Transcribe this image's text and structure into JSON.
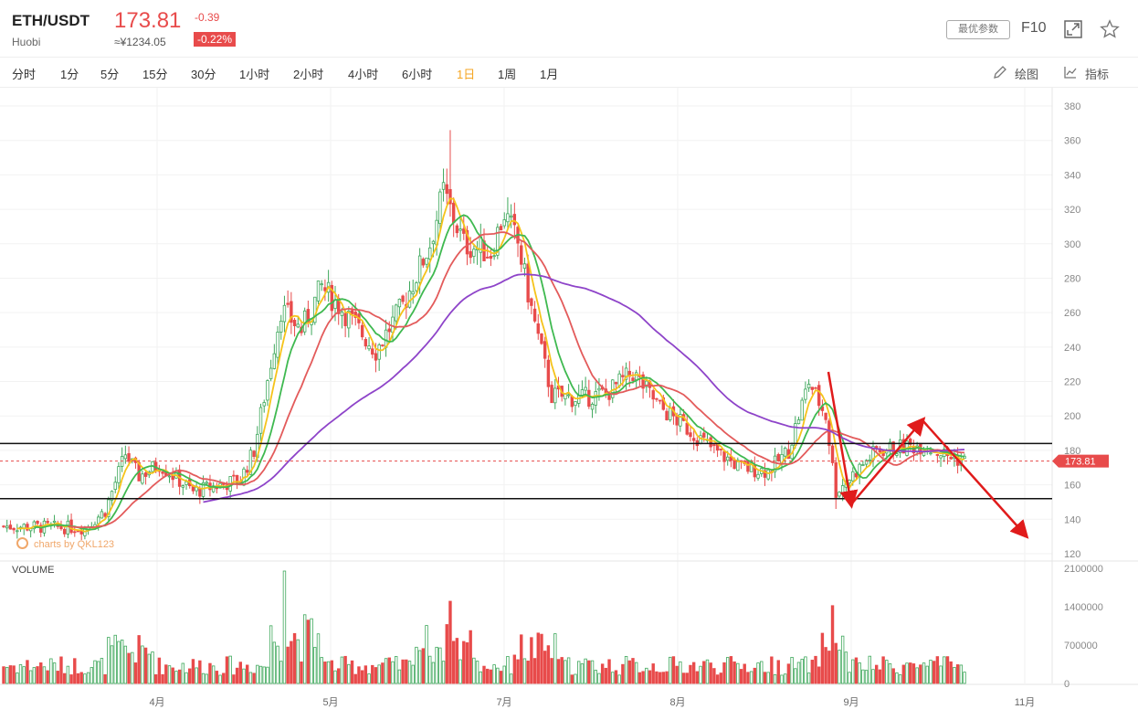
{
  "header": {
    "symbol": "ETH/USDT",
    "exchange": "Huobi",
    "price": "173.81",
    "cny_price": "≈¥1234.05",
    "change": "-0.39",
    "change_pct": "-0.22%",
    "params_button": "最优参数",
    "f10_label": "F10",
    "icons": [
      "fullscreen-icon",
      "star-icon"
    ]
  },
  "tabs": [
    {
      "label": "分时",
      "active": false
    },
    {
      "label": "1分",
      "active": false
    },
    {
      "label": "5分",
      "active": false
    },
    {
      "label": "15分",
      "active": false
    },
    {
      "label": "30分",
      "active": false
    },
    {
      "label": "1小时",
      "active": false
    },
    {
      "label": "2小时",
      "active": false
    },
    {
      "label": "4小时",
      "active": false
    },
    {
      "label": "6小时",
      "active": false
    },
    {
      "label": "1日",
      "active": true
    },
    {
      "label": "1周",
      "active": false
    },
    {
      "label": "1月",
      "active": false
    }
  ],
  "tools": {
    "draw_label": "绘图",
    "indicator_label": "指标"
  },
  "watermark": "charts by QKL123",
  "volume_label": "VOLUME",
  "colors": {
    "up": "#3fa85c",
    "down": "#e84b4b",
    "ma5": "#f5c31b",
    "ma10": "#3fb950",
    "ma20": "#e35b5b",
    "ma60": "#8e44c9",
    "accent": "#f5a623",
    "drawing": "#e01b1b"
  },
  "chart_data": {
    "type": "candlestick",
    "price_axis": {
      "ticks": [
        380,
        360,
        340,
        320,
        300,
        280,
        260,
        240,
        220,
        200,
        180,
        160,
        140,
        120
      ],
      "range": [
        115,
        385
      ]
    },
    "volume_axis": {
      "ticks": [
        "2100000",
        "1400000",
        "700000",
        "0"
      ],
      "range": [
        0,
        2100000
      ]
    },
    "x_ticks": [
      "4月",
      "5月",
      "7月",
      "8月",
      "9月",
      "11月"
    ],
    "current_price_tag": "173.81",
    "horizontal_lines": [
      184,
      152
    ],
    "trend_arrows": [
      [
        [
          224,
          145
        ],
        [
          196,
          122
        ]
      ],
      [
        [
          196,
          170
        ]
      ]
    ],
    "key_prices": [
      {
        "label": "start",
        "value": 136
      },
      {
        "label": "apr_high",
        "value": 185
      },
      {
        "label": "may_high",
        "value": 288
      },
      {
        "label": "jun_peak",
        "value": 366
      },
      {
        "label": "aug_low",
        "value": 163
      },
      {
        "label": "sep_low",
        "value": 146
      },
      {
        "label": "last",
        "value": 173.81
      }
    ]
  }
}
